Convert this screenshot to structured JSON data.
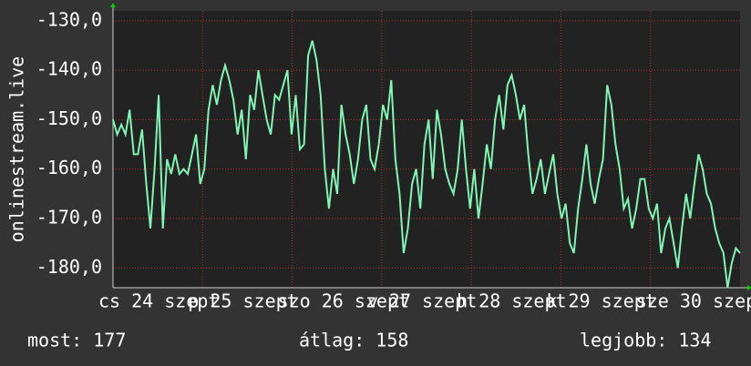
{
  "chart_data": {
    "type": "line",
    "y_axis_label": "onlinestream.live",
    "ylim": [
      -184,
      -128
    ],
    "yticks": [
      {
        "value": -130,
        "label": "-130,0"
      },
      {
        "value": -140,
        "label": "-140,0"
      },
      {
        "value": -150,
        "label": "-150,0"
      },
      {
        "value": -160,
        "label": "-160,0"
      },
      {
        "value": -170,
        "label": "-170,0"
      },
      {
        "value": -180,
        "label": "-180,0"
      }
    ],
    "xlim": [
      0,
      7
    ],
    "xticks": [
      {
        "value": 0,
        "label": "cs 24 szept"
      },
      {
        "value": 1,
        "label": "p 25 szept"
      },
      {
        "value": 2,
        "label": "szo 26 szept"
      },
      {
        "value": 3,
        "label": "v 27 szept"
      },
      {
        "value": 4,
        "label": "h 28 szept"
      },
      {
        "value": 5,
        "label": "k 29 szept"
      },
      {
        "value": 6,
        "label": "sze 30 szept"
      }
    ],
    "grid": true,
    "series": [
      {
        "color": "#80f5b4",
        "values": [
          -150,
          -153,
          -151,
          -153,
          -148,
          -157,
          -157,
          -152,
          -163,
          -172,
          -160,
          -145,
          -172,
          -158,
          -161,
          -157,
          -161,
          -160,
          -161,
          -157,
          -153,
          -163,
          -160,
          -148,
          -143,
          -147,
          -142,
          -139,
          -142,
          -146,
          -153,
          -148,
          -158,
          -145,
          -148,
          -140,
          -145,
          -150,
          -153,
          -145,
          -146,
          -143,
          -140,
          -153,
          -145,
          -156,
          -155,
          -137,
          -134,
          -138,
          -145,
          -160,
          -168,
          -160,
          -165,
          -147,
          -153,
          -157,
          -163,
          -158,
          -150,
          -147,
          -158,
          -160,
          -155,
          -147,
          -150,
          -142,
          -158,
          -165,
          -177,
          -172,
          -163,
          -160,
          -168,
          -155,
          -150,
          -162,
          -148,
          -153,
          -160,
          -163,
          -165,
          -160,
          -150,
          -160,
          -168,
          -160,
          -170,
          -163,
          -155,
          -160,
          -150,
          -145,
          -152,
          -143,
          -141,
          -145,
          -150,
          -147,
          -157,
          -165,
          -162,
          -158,
          -165,
          -161,
          -157,
          -165,
          -170,
          -167,
          -175,
          -177,
          -168,
          -162,
          -155,
          -163,
          -167,
          -162,
          -158,
          -143,
          -147,
          -155,
          -160,
          -168,
          -166,
          -172,
          -168,
          -162,
          -162,
          -168,
          -170,
          -167,
          -177,
          -172,
          -170,
          -175,
          -180,
          -172,
          -165,
          -170,
          -163,
          -157,
          -160,
          -165,
          -167,
          -172,
          -175,
          -177,
          -184,
          -179,
          -176,
          -177
        ]
      }
    ],
    "footer": [
      "most: 177",
      "átlag: 158",
      "legjobb: 134"
    ]
  }
}
